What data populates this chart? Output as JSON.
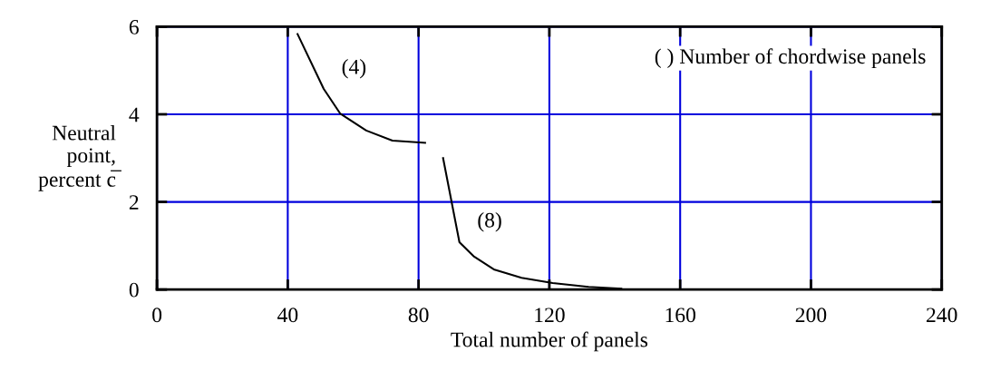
{
  "chart_data": {
    "type": "line",
    "xlabel": "Total number of panels",
    "ylabel": "Neutral\npoint,\npercent c̅",
    "series": [
      {
        "name": "(4)",
        "color": "#000000",
        "x": [
          43,
          51,
          56,
          64,
          72,
          82
        ],
        "values": [
          5.83,
          4.58,
          4.02,
          3.63,
          3.4,
          3.35
        ]
      },
      {
        "name": "(8)",
        "color": "#000000",
        "x": [
          87.5,
          92.5,
          97,
          103,
          111.5,
          121,
          132,
          142
        ],
        "values": [
          3.0,
          1.08,
          0.75,
          0.46,
          0.27,
          0.15,
          0.06,
          0.02
        ]
      }
    ],
    "annotations": [
      "( ) Number of chordwise panels"
    ],
    "xlim": [
      0,
      240
    ],
    "ylim": [
      0,
      6
    ],
    "xticks": [
      0,
      40,
      80,
      120,
      160,
      200,
      240
    ],
    "yticks": [
      0,
      2,
      4,
      6
    ],
    "grid": true,
    "legend": false,
    "marker": "none",
    "line_style": "solid"
  }
}
